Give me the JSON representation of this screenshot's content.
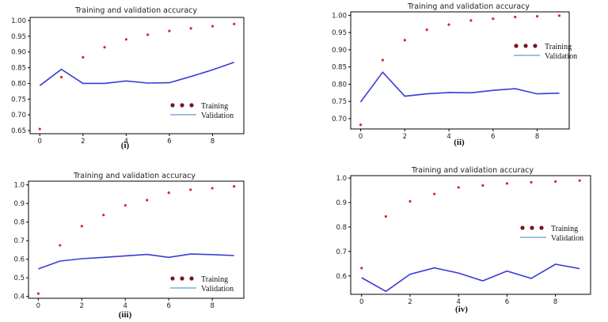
{
  "colors": {
    "training": "#e0251f",
    "validation": "#3a3ad8",
    "legend_line": "#7aaedc",
    "legend_dot": "#7a1420"
  },
  "legend": {
    "training_label": "Training",
    "validation_label": "Validation"
  },
  "chart_data": [
    {
      "type": "line",
      "title": "Training and validation accuracy",
      "caption": "(i)",
      "x": [
        0,
        1,
        2,
        3,
        4,
        5,
        6,
        7,
        8,
        9
      ],
      "xticks": [
        0,
        2,
        4,
        6,
        8
      ],
      "ylim": [
        0.64,
        1.01
      ],
      "yticks": [
        0.65,
        0.7,
        0.75,
        0.8,
        0.85,
        0.9,
        0.95,
        1.0
      ],
      "ytick_labels": [
        "0.65",
        "0.70",
        "0.75",
        "0.80",
        "0.85",
        "0.90",
        "0.95",
        "1.00"
      ],
      "legend_position": "lower-right",
      "series": [
        {
          "name": "Training",
          "style": "dots",
          "values": [
            0.655,
            0.82,
            0.883,
            0.915,
            0.94,
            0.955,
            0.967,
            0.975,
            0.982,
            0.989
          ]
        },
        {
          "name": "Validation",
          "style": "line",
          "values": [
            0.793,
            0.845,
            0.8,
            0.8,
            0.808,
            0.801,
            0.802,
            0.822,
            0.843,
            0.867
          ]
        }
      ]
    },
    {
      "type": "line",
      "title": "Training and validation accuracy",
      "caption": "(ii)",
      "x": [
        0,
        1,
        2,
        3,
        4,
        5,
        6,
        7,
        8,
        9
      ],
      "xticks": [
        0,
        2,
        4,
        6,
        8
      ],
      "ylim": [
        0.67,
        1.01
      ],
      "yticks": [
        0.7,
        0.75,
        0.8,
        0.85,
        0.9,
        0.95,
        1.0
      ],
      "ytick_labels": [
        "0.70",
        "0.75",
        "0.80",
        "0.85",
        "0.90",
        "0.95",
        "1.00"
      ],
      "legend_position": "upper-right",
      "series": [
        {
          "name": "Training",
          "style": "dots",
          "values": [
            0.682,
            0.87,
            0.928,
            0.958,
            0.973,
            0.985,
            0.99,
            0.995,
            0.997,
            0.999
          ]
        },
        {
          "name": "Validation",
          "style": "line",
          "values": [
            0.748,
            0.835,
            0.765,
            0.772,
            0.776,
            0.775,
            0.782,
            0.787,
            0.772,
            0.774
          ]
        }
      ]
    },
    {
      "type": "line",
      "title": "Training and validation accuracy",
      "caption": "(iii)",
      "x": [
        0,
        1,
        2,
        3,
        4,
        5,
        6,
        7,
        8,
        9
      ],
      "xticks": [
        0,
        2,
        4,
        6,
        8
      ],
      "ylim": [
        0.39,
        1.02
      ],
      "yticks": [
        0.4,
        0.5,
        0.6,
        0.7,
        0.8,
        0.9,
        1.0
      ],
      "ytick_labels": [
        "0.4",
        "0.5",
        "0.6",
        "0.7",
        "0.8",
        "0.9",
        "1.0"
      ],
      "legend_position": "lower-right",
      "series": [
        {
          "name": "Training",
          "style": "dots",
          "values": [
            0.415,
            0.675,
            0.778,
            0.838,
            0.89,
            0.918,
            0.958,
            0.974,
            0.982,
            0.992
          ]
        },
        {
          "name": "Validation",
          "style": "line",
          "values": [
            0.548,
            0.59,
            0.603,
            0.61,
            0.618,
            0.626,
            0.61,
            0.628,
            0.625,
            0.62
          ]
        }
      ]
    },
    {
      "type": "line",
      "title": "Training and validation accuracy",
      "caption": "(iv)",
      "x": [
        0,
        1,
        2,
        3,
        4,
        5,
        6,
        7,
        8,
        9
      ],
      "xticks": [
        0,
        2,
        4,
        6,
        8
      ],
      "ylim": [
        0.525,
        1.01
      ],
      "yticks": [
        0.6,
        0.7,
        0.8,
        0.9,
        1.0
      ],
      "ytick_labels": [
        "0.6",
        "0.7",
        "0.8",
        "0.9",
        "1.0"
      ],
      "legend_position": "right",
      "series": [
        {
          "name": "Training",
          "style": "dots",
          "values": [
            0.632,
            0.843,
            0.905,
            0.935,
            0.962,
            0.97,
            0.978,
            0.983,
            0.986,
            0.99
          ]
        },
        {
          "name": "Validation",
          "style": "line",
          "values": [
            0.593,
            0.537,
            0.607,
            0.633,
            0.612,
            0.58,
            0.62,
            0.59,
            0.648,
            0.63
          ]
        }
      ]
    }
  ]
}
